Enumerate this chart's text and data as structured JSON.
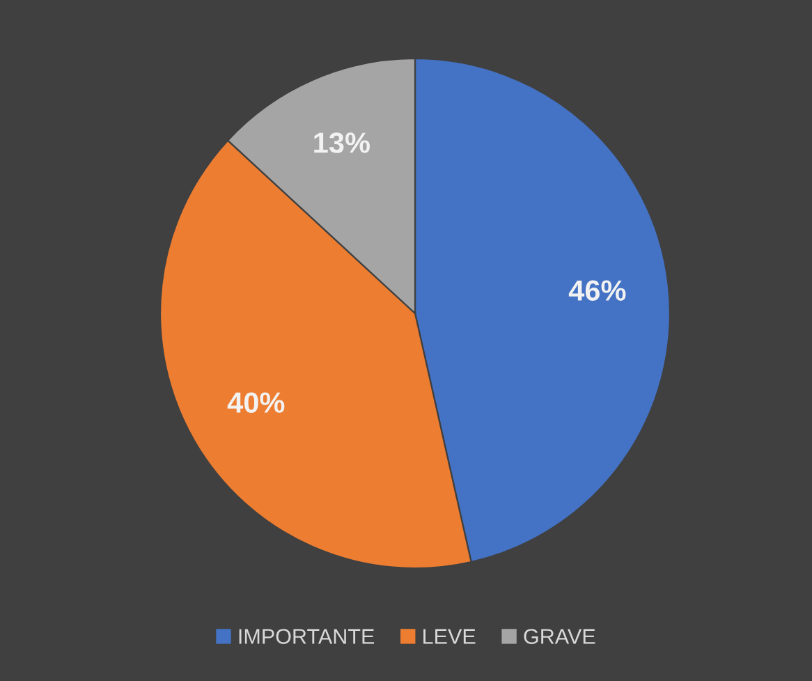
{
  "chart_data": {
    "type": "pie",
    "categories": [
      "IMPORTANTE",
      "LEVE",
      "GRAVE"
    ],
    "values": [
      46,
      40,
      13
    ],
    "colors": [
      "#4472c4",
      "#ed7d31",
      "#a5a5a5"
    ],
    "value_labels": [
      "46%",
      "40%",
      "13%"
    ],
    "legend": "bottom"
  }
}
